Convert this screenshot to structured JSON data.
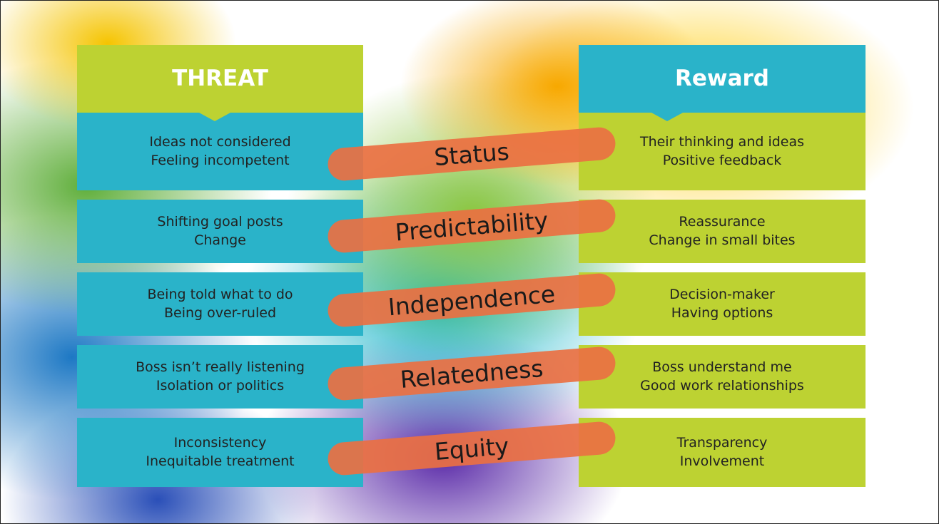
{
  "threat_header": "THREAT",
  "reward_header": "Reward",
  "rows": [
    {
      "threat": [
        "Ideas not considered",
        "Feeling incompetent"
      ],
      "driver": "Status",
      "reward": [
        "Their thinking and ideas",
        "Positive feedback"
      ]
    },
    {
      "threat": [
        "Shifting goal posts",
        "Change"
      ],
      "driver": "Predictability",
      "reward": [
        "Reassurance",
        "Change in small bites"
      ]
    },
    {
      "threat": [
        "Being told what to do",
        "Being over-ruled"
      ],
      "driver": "Independence",
      "reward": [
        "Decision-maker",
        "Having options"
      ]
    },
    {
      "threat": [
        "Boss isn’t really listening",
        "Isolation or politics"
      ],
      "driver": "Relatedness",
      "reward": [
        "Boss understand me",
        "Good work relationships"
      ]
    },
    {
      "threat": [
        "Inconsistency",
        "Inequitable treatment"
      ],
      "driver": "Equity",
      "reward": [
        "Transparency",
        "Involvement"
      ]
    }
  ]
}
